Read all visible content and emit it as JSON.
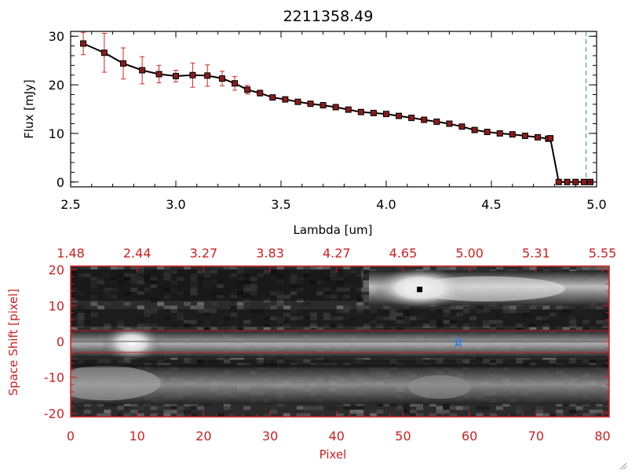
{
  "colors": {
    "axis_top": "#000000",
    "axis_bottom": "#cc2222",
    "line": "#000000",
    "marker_fill": "#8b1a1a",
    "errorbar": "#dd2222",
    "dashed_line": "#2a9d6e",
    "star": "#3b7dd8",
    "band": "#cc2222"
  },
  "chart_data": [
    {
      "type": "line",
      "title": "2211358.49",
      "xlabel": "Lambda [um]",
      "ylabel": "Flux [mJy]",
      "xlim": [
        2.5,
        5.0
      ],
      "ylim": [
        -1,
        31
      ],
      "x_ticks": [
        "2.5",
        "3.0",
        "3.5",
        "4.0",
        "4.5",
        "5.0"
      ],
      "x_tick_values": [
        2.5,
        3.0,
        3.5,
        4.0,
        4.5,
        5.0
      ],
      "y_ticks": [
        "0",
        "10",
        "20",
        "30"
      ],
      "y_tick_values": [
        0,
        10,
        20,
        30
      ],
      "vertical_dashed_line_x": 4.95,
      "series": [
        {
          "x": [
            2.56,
            2.66,
            2.75,
            2.84,
            2.92,
            3.0,
            3.08,
            3.15,
            3.22,
            3.28,
            3.34,
            3.4,
            3.46,
            3.52,
            3.58,
            3.64,
            3.7,
            3.76,
            3.82,
            3.88,
            3.94,
            4.0,
            4.06,
            4.12,
            4.18,
            4.24,
            4.3,
            4.36,
            4.42,
            4.48,
            4.54,
            4.6,
            4.66,
            4.72,
            4.77,
            4.78,
            4.82,
            4.86,
            4.9,
            4.94,
            4.97
          ],
          "y": [
            28.5,
            26.6,
            24.4,
            23.0,
            22.2,
            21.8,
            22.0,
            21.9,
            21.3,
            20.3,
            19.0,
            18.3,
            17.4,
            17.0,
            16.5,
            16.1,
            15.8,
            15.4,
            14.9,
            14.4,
            14.2,
            14.0,
            13.6,
            13.2,
            12.8,
            12.4,
            12.0,
            11.4,
            10.7,
            10.3,
            10.0,
            9.8,
            9.5,
            9.2,
            8.9,
            9.0,
            0,
            0,
            0,
            0,
            0
          ],
          "yerr": [
            2.3,
            4.0,
            3.2,
            2.8,
            1.8,
            1.2,
            2.5,
            2.2,
            1.5,
            1.4,
            0.9,
            0.6,
            0.4,
            0.4,
            0.3,
            0.3,
            0.3,
            0.3,
            0.3,
            0.3,
            0.3,
            0.3,
            0.3,
            0.3,
            0.3,
            0.3,
            0.3,
            0.3,
            0.3,
            0.3,
            0.3,
            0.3,
            0.3,
            0.3,
            0.3,
            0.3,
            0,
            0,
            0,
            0,
            0
          ]
        }
      ]
    },
    {
      "type": "heatmap",
      "xlabel": "Pixel",
      "ylabel": "Space Shift [pixel]",
      "xlim": [
        0,
        81
      ],
      "ylim": [
        -21,
        21
      ],
      "x_ticks": [
        "0",
        "10",
        "20",
        "30",
        "40",
        "50",
        "60",
        "70",
        "80"
      ],
      "x_tick_values": [
        0,
        10,
        20,
        30,
        40,
        50,
        60,
        70,
        80
      ],
      "y_ticks": [
        "-20",
        "-10",
        "0",
        "10",
        "20"
      ],
      "y_tick_values": [
        -20,
        -10,
        0,
        10,
        20
      ],
      "top_axis_ticks": [
        "1.48",
        "2.44",
        "3.27",
        "3.83",
        "4.27",
        "4.65",
        "5.00",
        "5.31",
        "5.55"
      ],
      "top_axis_tick_positions": [
        0,
        10,
        20,
        30,
        40,
        50,
        60,
        70,
        80
      ],
      "extraction_band": [
        -3,
        3
      ],
      "black_marker": {
        "x": 52.5,
        "y": 14.5
      },
      "star_marker": {
        "x": 58.3,
        "y": 0
      }
    }
  ]
}
